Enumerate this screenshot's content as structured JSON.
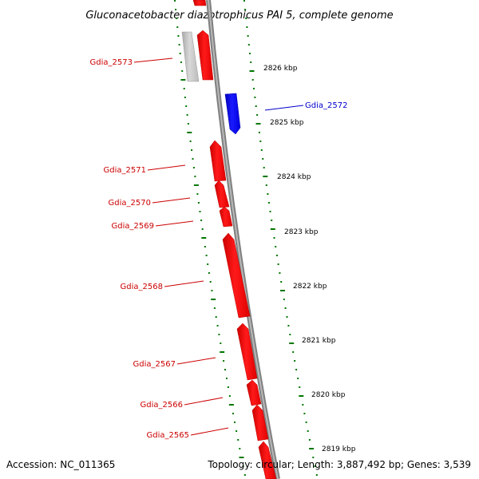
{
  "title": "Gluconacetobacter diazotrophicus PAI 5, complete genome",
  "accession": "Accession: NC_011365",
  "summary": "Topology: circular; Length: 3,887,492 bp; Genes: 3,539",
  "colors": {
    "forward": "#ff0000",
    "reverse": "#0000ff",
    "other": "#c0c0c0",
    "backbone": "#808080",
    "ticks": "#007700",
    "label_forward": "#cc0000",
    "label_reverse": "#0000cc"
  },
  "kbp_ticks": [
    "2826 kbp",
    "2825 kbp",
    "2824 kbp",
    "2823 kbp",
    "2822 kbp",
    "2821 kbp",
    "2820 kbp",
    "2819 kbp"
  ],
  "genes": [
    {
      "id": "Gdia_2573",
      "label": "Gdia_2573",
      "strand": "forward"
    },
    {
      "id": "Gdia_2572",
      "label": "Gdia_2572",
      "strand": "reverse"
    },
    {
      "id": "Gdia_2571",
      "label": "Gdia_2571",
      "strand": "forward"
    },
    {
      "id": "Gdia_2570",
      "label": "Gdia_2570",
      "strand": "forward"
    },
    {
      "id": "Gdia_2569",
      "label": "Gdia_2569",
      "strand": "forward"
    },
    {
      "id": "Gdia_2568",
      "label": "Gdia_2568",
      "strand": "forward"
    },
    {
      "id": "Gdia_2567",
      "label": "Gdia_2567",
      "strand": "forward"
    },
    {
      "id": "Gdia_2566",
      "label": "Gdia_2566",
      "strand": "forward"
    },
    {
      "id": "Gdia_2565",
      "label": "Gdia_2565",
      "strand": "forward"
    }
  ]
}
